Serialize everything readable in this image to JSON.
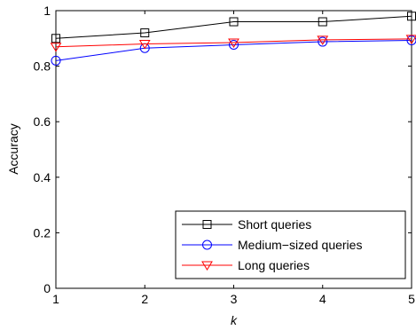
{
  "chart_data": {
    "type": "line",
    "xlabel": "k",
    "ylabel": "Accuracy",
    "xlim": [
      1,
      5
    ],
    "ylim": [
      0,
      1
    ],
    "x_ticks": [
      "1",
      "2",
      "3",
      "4",
      "5"
    ],
    "y_ticks": [
      "0",
      "0.2",
      "0.4",
      "0.6",
      "0.8",
      "1"
    ],
    "x": [
      1,
      2,
      3,
      4,
      5
    ],
    "grid": false,
    "legend_position": "bottom-right",
    "series": [
      {
        "name": "Short queries",
        "values": [
          0.9,
          0.92,
          0.96,
          0.96,
          0.98
        ],
        "color": "#000000",
        "marker": "square"
      },
      {
        "name": "Medium−sized queries",
        "values": [
          0.82,
          0.865,
          0.877,
          0.888,
          0.893
        ],
        "color": "#0000ff",
        "marker": "circle"
      },
      {
        "name": "Long queries",
        "values": [
          0.87,
          0.88,
          0.885,
          0.895,
          0.898
        ],
        "color": "#ff0000",
        "marker": "triangle-down"
      }
    ]
  }
}
